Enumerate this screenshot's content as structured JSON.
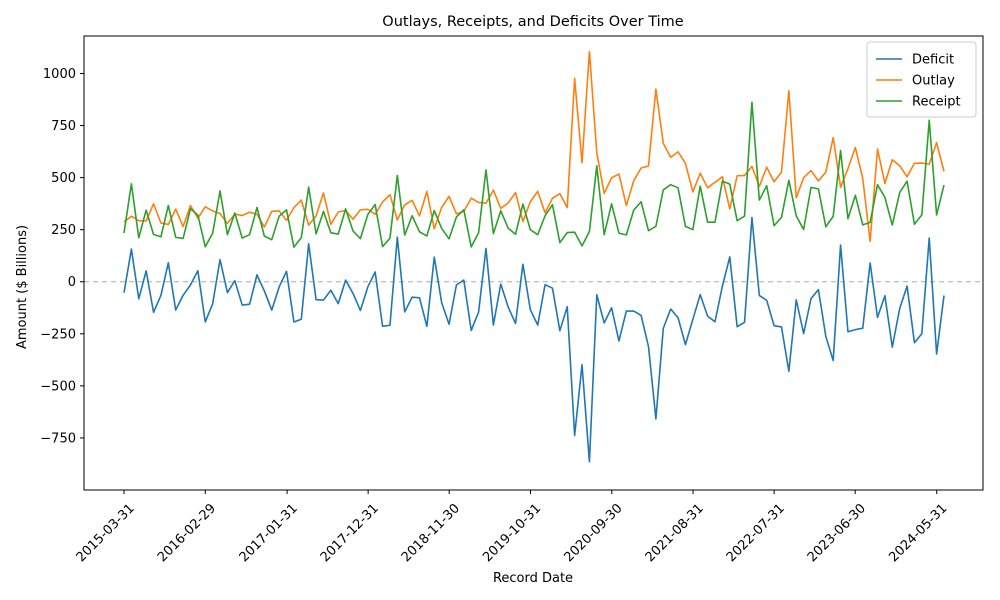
{
  "chart_data": {
    "type": "line",
    "title": "Outlays, Receipts, and Deficits Over Time",
    "xlabel": "Record Date",
    "ylabel": "Amount ($ Billions)",
    "start_date": "2015-03-31",
    "end_date": "2024-06-30",
    "x_ticks": [
      "2015-03-31",
      "2016-02-29",
      "2017-01-31",
      "2017-12-31",
      "2018-11-30",
      "2019-10-31",
      "2020-09-30",
      "2021-08-31",
      "2022-07-31",
      "2023-06-30",
      "2024-05-31"
    ],
    "ylim": [
      -1000,
      1180
    ],
    "y_ticks": [
      -750,
      -500,
      -250,
      0,
      250,
      500,
      750,
      1000
    ],
    "y_tick_labels": [
      "−750",
      "−500",
      "−250",
      "0",
      "250",
      "500",
      "750",
      "1000"
    ],
    "zero_line": true,
    "legend_position": "top-right",
    "series": [
      {
        "name": "Deficit",
        "color": "#1f77b4",
        "values": [
          -53,
          157,
          -82,
          52,
          -147,
          -65,
          91,
          -136,
          -65,
          -15,
          53,
          -193,
          -106,
          106,
          -52,
          5,
          -112,
          -108,
          33,
          -44,
          -136,
          -25,
          50,
          -193,
          -180,
          182,
          -86,
          -88,
          -41,
          -105,
          8,
          -56,
          -138,
          -25,
          47,
          -214,
          -209,
          214,
          -145,
          -74,
          -77,
          -214,
          118,
          -101,
          -204,
          -15,
          8,
          -234,
          -146,
          160,
          -208,
          -11,
          -121,
          -200,
          84,
          -134,
          -208,
          -14,
          -31,
          -235,
          -120,
          -738,
          -399,
          -864,
          -63,
          -198,
          -125,
          -284,
          -141,
          -141,
          -162,
          -311,
          -659,
          -224,
          -131,
          -173,
          -302,
          -181,
          -62,
          -165,
          -192,
          -21,
          119,
          -216,
          -195,
          308,
          -66,
          -89,
          -211,
          -217,
          -430,
          -87,
          -249,
          -81,
          -38,
          -262,
          -378,
          176,
          -240,
          -230,
          -223,
          90,
          -171,
          -67,
          -314,
          -129,
          -21,
          -293,
          -249,
          210,
          -347,
          -66
        ]
      },
      {
        "name": "Outlay",
        "color": "#ff7f0e",
        "values": [
          287,
          315,
          293,
          292,
          374,
          282,
          275,
          349,
          265,
          366,
          305,
          360,
          340,
          327,
          280,
          325,
          318,
          334,
          324,
          263,
          338,
          340,
          295,
          356,
          392,
          272,
          316,
          426,
          276,
          335,
          342,
          300,
          345,
          348,
          324,
          383,
          418,
          297,
          369,
          391,
          316,
          434,
          254,
          357,
          410,
          326,
          338,
          401,
          381,
          377,
          440,
          352,
          378,
          428,
          289,
          384,
          434,
          331,
          401,
          423,
          356,
          976,
          571,
          1105,
          619,
          424,
          499,
          517,
          366,
          485,
          546,
          556,
          925,
          665,
          597,
          624,
          568,
          431,
          521,
          451,
          478,
          504,
          350,
          509,
          510,
          554,
          458,
          550,
          480,
          526,
          917,
          403,
          500,
          534,
          484,
          526,
          692,
          454,
          543,
          645,
          496,
          194,
          637,
          472,
          586,
          557,
          504,
          569,
          570,
          565,
          668,
          530
        ]
      },
      {
        "name": "Receipt",
        "color": "#2ca02c",
        "values": [
          234,
          470,
          211,
          344,
          227,
          216,
          366,
          213,
          208,
          351,
          320,
          168,
          233,
          436,
          226,
          330,
          210,
          226,
          357,
          219,
          202,
          315,
          345,
          166,
          212,
          454,
          230,
          338,
          235,
          229,
          350,
          244,
          207,
          323,
          371,
          169,
          209,
          510,
          224,
          317,
          240,
          220,
          342,
          256,
          206,
          311,
          346,
          167,
          235,
          537,
          231,
          341,
          257,
          228,
          373,
          250,
          226,
          317,
          370,
          188,
          236,
          238,
          172,
          241,
          556,
          226,
          374,
          233,
          225,
          344,
          384,
          245,
          266,
          441,
          466,
          451,
          266,
          250,
          459,
          286,
          286,
          483,
          469,
          293,
          315,
          862,
          392,
          461,
          269,
          309,
          487,
          316,
          251,
          453,
          446,
          264,
          314,
          630,
          303,
          415,
          273,
          285,
          466,
          405,
          272,
          428,
          483,
          276,
          321,
          775,
          321,
          464
        ]
      }
    ]
  }
}
